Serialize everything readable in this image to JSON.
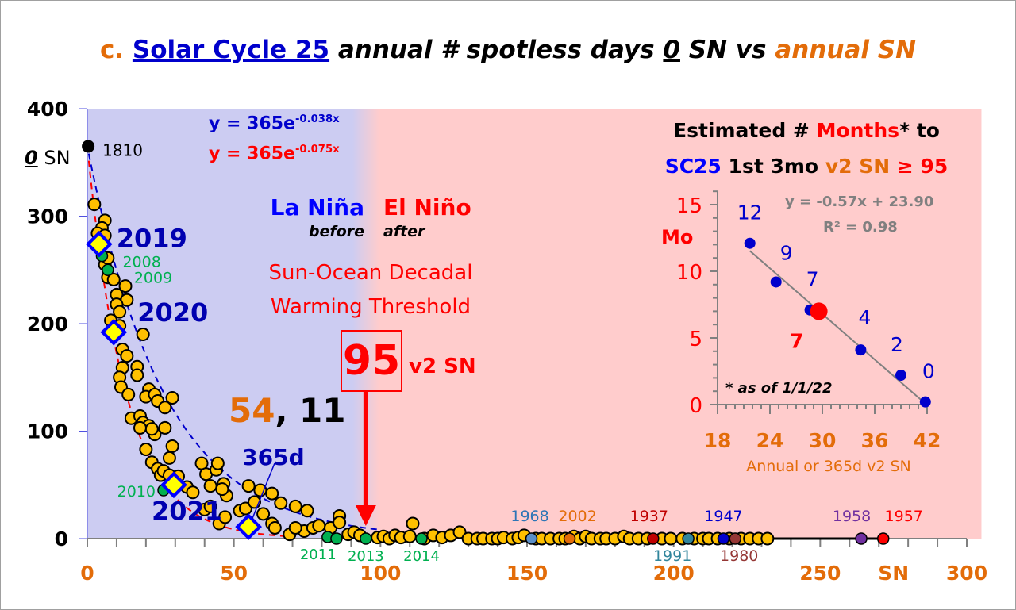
{
  "chart_data": [
    {
      "type": "scatter",
      "title": {
        "prefix": "c.",
        "link": "Solar Cycle 25",
        "mid": "annual # spotless days",
        "zero": "0",
        "sn_vs": "SN vs",
        "suffix": "annual SN"
      },
      "ylabel": {
        "zero": "0",
        "rest": "SN"
      },
      "xlim": [
        0,
        300
      ],
      "ylim": [
        0,
        400
      ],
      "x_ticks": [
        "0",
        "50",
        "100",
        "150",
        "200",
        "250",
        "300"
      ],
      "x_unit_label": "SN",
      "y_ticks": [
        "0",
        "100",
        "200",
        "300",
        "400"
      ],
      "background_regions": [
        {
          "from": 0,
          "to": 95,
          "color": "#ccccf2"
        },
        {
          "from": 95,
          "to": 305,
          "color": "#ffcccc"
        }
      ],
      "series": [
        {
          "marker": "circle",
          "color": "#ffc000",
          "points": [
            [
              2.4,
              311
            ],
            [
              6,
              296
            ],
            [
              5,
              289
            ],
            [
              3.5,
              284
            ],
            [
              6,
              282
            ],
            [
              6,
              255
            ],
            [
              7,
              261
            ],
            [
              7,
              243
            ],
            [
              9,
              241
            ],
            [
              13,
              235
            ],
            [
              10,
              227
            ],
            [
              13.5,
              222
            ],
            [
              10,
              218
            ],
            [
              11,
              211
            ],
            [
              8,
              203
            ],
            [
              11,
              198
            ],
            [
              19,
              190
            ],
            [
              12,
              176
            ],
            [
              13.5,
              170
            ],
            [
              12,
              159
            ],
            [
              11,
              150
            ],
            [
              11.5,
              141
            ],
            [
              17,
              160
            ],
            [
              17,
              152
            ],
            [
              14,
              134
            ],
            [
              15,
              112
            ],
            [
              18,
              114
            ],
            [
              21,
              139
            ],
            [
              20,
              132
            ],
            [
              23,
              134
            ],
            [
              24,
              128
            ],
            [
              26.5,
              122
            ],
            [
              29,
              131
            ],
            [
              19,
              108
            ],
            [
              21,
              105
            ],
            [
              23,
              97
            ],
            [
              22,
              102
            ],
            [
              18,
              103
            ],
            [
              26.5,
              103
            ],
            [
              29,
              86
            ],
            [
              28,
              75
            ],
            [
              20,
              83
            ],
            [
              22,
              71
            ],
            [
              24,
              65
            ],
            [
              25,
              59
            ],
            [
              31,
              58
            ],
            [
              34,
              48
            ],
            [
              36,
              43
            ],
            [
              26,
              63
            ],
            [
              28,
              59
            ],
            [
              39,
              70
            ],
            [
              40.5,
              60
            ],
            [
              44,
              64
            ],
            [
              44.5,
              70
            ],
            [
              46.5,
              51
            ],
            [
              47.5,
              40
            ],
            [
              46,
              46
            ],
            [
              40,
              27
            ],
            [
              42,
              30
            ],
            [
              42,
              49
            ],
            [
              45,
              14
            ],
            [
              47,
              20
            ],
            [
              52,
              26
            ],
            [
              54,
              28
            ],
            [
              55,
              49
            ],
            [
              59,
              45
            ],
            [
              57,
              34
            ],
            [
              60,
              23
            ],
            [
              63,
              42
            ],
            [
              66,
              33
            ],
            [
              71,
              30
            ],
            [
              74,
              7
            ],
            [
              75,
              26
            ],
            [
              63,
              14
            ],
            [
              64,
              10
            ],
            [
              69,
              4
            ],
            [
              71,
              10
            ],
            [
              77,
              10
            ],
            [
              79,
              12
            ],
            [
              83,
              10
            ],
            [
              86,
              21
            ],
            [
              86,
              15
            ],
            [
              89,
              4
            ],
            [
              91,
              6
            ],
            [
              93,
              3
            ],
            [
              99,
              1
            ],
            [
              101,
              2
            ],
            [
              103,
              0
            ],
            [
              105,
              3
            ],
            [
              107,
              1
            ],
            [
              110,
              2
            ],
            [
              111,
              14
            ],
            [
              115,
              0
            ],
            [
              118,
              3
            ],
            [
              121,
              1
            ],
            [
              124,
              3
            ],
            [
              127,
              6
            ],
            [
              130,
              0
            ],
            [
              133,
              0
            ],
            [
              135,
              0
            ],
            [
              138,
              0
            ],
            [
              140,
              0
            ],
            [
              142,
              1
            ],
            [
              145,
              0
            ],
            [
              147,
              1
            ],
            [
              149,
              3
            ],
            [
              153,
              0
            ],
            [
              155,
              0
            ],
            [
              158,
              0
            ],
            [
              161,
              0
            ],
            [
              163,
              0
            ],
            [
              166,
              2
            ],
            [
              168,
              0
            ],
            [
              170,
              2
            ],
            [
              172,
              0
            ],
            [
              175,
              0
            ],
            [
              177,
              0
            ],
            [
              180,
              0
            ],
            [
              183,
              2
            ],
            [
              185,
              0
            ],
            [
              188,
              0
            ],
            [
              191,
              0
            ],
            [
              196,
              0
            ],
            [
              199,
              0
            ],
            [
              203,
              0
            ],
            [
              207,
              0
            ],
            [
              210,
              0
            ],
            [
              212,
              0
            ],
            [
              215,
              0
            ],
            [
              219,
              0
            ],
            [
              223,
              0
            ],
            [
              226,
              0
            ],
            [
              229,
              0
            ],
            [
              232,
              0
            ]
          ]
        },
        {
          "marker": "circle-labeled",
          "points": [
            {
              "x": 0.3,
              "y": 365,
              "label": "1810",
              "color": "#000000",
              "label_color": "#000000"
            },
            {
              "x": 5,
              "y": 263,
              "label": "2008",
              "color": "#00b050",
              "label_color": "#00b050"
            },
            {
              "x": 7,
              "y": 250,
              "label": "2009",
              "color": "#00b050",
              "label_color": "#00b050"
            },
            {
              "x": 26,
              "y": 45,
              "label": "2010",
              "color": "#00b050",
              "label_color": "#00b050"
            },
            {
              "x": 82,
              "y": 1.5,
              "label": "2011",
              "color": "#00b050",
              "label_color": "#00b050"
            },
            {
              "x": 85,
              "y": 0,
              "label": "",
              "color": "#00b050",
              "label_color": "#00b050"
            },
            {
              "x": 95,
              "y": 0,
              "label": "2013",
              "color": "#00b050",
              "label_color": "#00b050"
            },
            {
              "x": 114,
              "y": 0,
              "label": "2014",
              "color": "#00b050",
              "label_color": "#00b050"
            },
            {
              "x": 151.5,
              "y": 0,
              "label": "1968",
              "color": "#5b8fc7",
              "label_color": "#2e75b6"
            },
            {
              "x": 164.5,
              "y": 0,
              "label": "2002",
              "color": "#e36c09",
              "label_color": "#e36c09"
            },
            {
              "x": 193,
              "y": 0,
              "label": "1937",
              "color": "#c00000",
              "label_color": "#c00000"
            },
            {
              "x": 205,
              "y": 0,
              "label": "1991",
              "color": "#31859c",
              "label_color": "#31859c"
            },
            {
              "x": 217,
              "y": 0,
              "label": "1947",
              "color": "#0000cc",
              "label_color": "#0000cc"
            },
            {
              "x": 221,
              "y": 0,
              "label": "1980",
              "color": "#953735",
              "label_color": "#953735"
            },
            {
              "x": 264,
              "y": 0,
              "label": "1958",
              "color": "#7030a0",
              "label_color": "#7030a0"
            },
            {
              "x": 271.5,
              "y": 0,
              "label": "1957",
              "color": "#ff0000",
              "label_color": "#ff0000"
            }
          ]
        },
        {
          "marker": "diamond",
          "color": "#ffff00",
          "edge": "#0000ff",
          "points": [
            {
              "x": 4,
              "y": 274,
              "label": "2019"
            },
            {
              "x": 9,
              "y": 192,
              "label": "2020"
            },
            {
              "x": 29.5,
              "y": 50,
              "label": "2021"
            },
            {
              "x": 55,
              "y": 11,
              "label": "365d"
            }
          ]
        }
      ],
      "trendlines": [
        {
          "equation_base": "y = 365e",
          "exponent": "-0.038x",
          "a": 365,
          "b": -0.038,
          "color": "#0000cc",
          "style": "dashed"
        },
        {
          "equation_base": "y = 365e",
          "exponent": "-0.075x",
          "a": 365,
          "b": -0.075,
          "color": "#ff0000",
          "style": "dashed"
        }
      ],
      "annotations": {
        "la_nina": "La Niña",
        "before": "before",
        "el_nino": "El Niño",
        "after": "after",
        "threshold_line1": "Sun-Ocean Decadal",
        "threshold_line2": "Warming Threshold",
        "threshold_value": "95",
        "threshold_unit": "v2 SN",
        "threshold_x": 95,
        "current_sn": "54",
        "current_sep": ", ",
        "current_zero": "11"
      }
    },
    {
      "type": "scatter",
      "title_line1": {
        "a": "Estimated # ",
        "b": "Months",
        "c": "* to"
      },
      "title_line2": {
        "a": "SC25",
        "b": " 1st 3mo ",
        "c": "v2 SN",
        "d": " ≥ 95"
      },
      "xlabel": "Annual or 365d v2 SN",
      "ylabel": "Mo",
      "xlim": [
        18,
        42
      ],
      "ylim": [
        0,
        15
      ],
      "x_ticks": [
        "18",
        "24",
        "30",
        "36",
        "42"
      ],
      "y_ticks": [
        "0",
        "5",
        "10",
        "15"
      ],
      "points": [
        {
          "x": 21.7,
          "y": 12.1,
          "label": "12"
        },
        {
          "x": 24.7,
          "y": 9.2,
          "label": "9"
        },
        {
          "x": 28.6,
          "y": 7.1,
          "label": "7"
        },
        {
          "x": 34.4,
          "y": 4.1,
          "label": "4"
        },
        {
          "x": 39.0,
          "y": 2.2,
          "label": "2"
        },
        {
          "x": 41.8,
          "y": 0.2,
          "label": "0"
        }
      ],
      "highlight": {
        "x": 29.6,
        "y": 7.0,
        "label": "7",
        "color": "#ff0000"
      },
      "point_color": "#0000cc",
      "fit": {
        "slope": -0.57,
        "intercept": 23.9,
        "equation": "y = -0.57x + 23.90",
        "r2": "R² = 0.98",
        "color": "#808080"
      },
      "note": "* as of 1/1/22"
    }
  ]
}
